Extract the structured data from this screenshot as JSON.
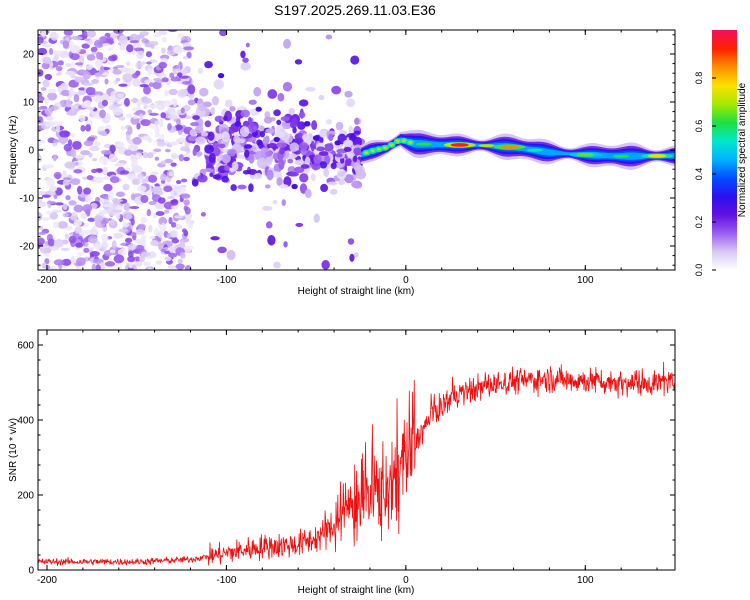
{
  "title": "S197.2025.269.11.03.E36",
  "chart_data": [
    {
      "type": "heatmap",
      "id": "spectrum",
      "xlabel": "Height of straight line (km)",
      "ylabel": "Frequency (Hz)",
      "xlim": [
        -205,
        150
      ],
      "ylim": [
        -25,
        25
      ],
      "xticks": [
        -200,
        -100,
        0,
        100
      ],
      "yticks": [
        -20,
        -10,
        0,
        10,
        20
      ],
      "colorbar": {
        "label": "Normalized spectral amplitude",
        "range": [
          0,
          1
        ],
        "ticks": [
          0.0,
          0.2,
          0.4,
          0.6,
          0.8
        ],
        "colors": [
          "#ffffff",
          "#d8c8f4",
          "#9a5cf0",
          "#6010e0",
          "#2a10f0",
          "#0050ff",
          "#00b4ff",
          "#00e8c8",
          "#20e040",
          "#a8e800",
          "#ffe000",
          "#ff8c00",
          "#ff2000",
          "#f01060"
        ]
      },
      "features": [
        {
          "name": "noise",
          "x_range": [
            -205,
            -120
          ],
          "f_range": [
            -25,
            25
          ],
          "amplitude": 0.08
        },
        {
          "name": "scatter",
          "x_range": [
            -120,
            -25
          ],
          "f_range": [
            -25,
            25
          ],
          "amplitude": 0.1
        },
        {
          "name": "carrier",
          "x_range": [
            -25,
            150
          ],
          "frequency_hz": 0,
          "peak_amplitude": 0.98
        }
      ],
      "carrier_track": [
        {
          "x": -25,
          "f": -1.0
        },
        {
          "x": -20,
          "f": -0.3
        },
        {
          "x": -10,
          "f": 0.6
        },
        {
          "x": -3,
          "f": 2.2
        },
        {
          "x": 0,
          "f": 1.8
        },
        {
          "x": 5,
          "f": 1.3
        },
        {
          "x": 20,
          "f": 1.1
        },
        {
          "x": 40,
          "f": 1.0
        },
        {
          "x": 60,
          "f": 0.6
        },
        {
          "x": 80,
          "f": -0.5
        },
        {
          "x": 100,
          "f": -1.0
        },
        {
          "x": 120,
          "f": -1.3
        },
        {
          "x": 150,
          "f": -1.2
        }
      ],
      "carrier_hotspots": [
        {
          "x": 30,
          "f": 1.0,
          "amplitude": 0.95
        },
        {
          "x": 58,
          "f": 0.3,
          "amplitude": 0.85
        },
        {
          "x": 100,
          "f": -1.8,
          "amplitude": 0.65
        },
        {
          "x": 140,
          "f": -1.3,
          "amplitude": 0.75
        }
      ]
    },
    {
      "type": "line",
      "id": "snr",
      "xlabel": "Height of straight line (km)",
      "ylabel": "SNR (10 * v/v)",
      "xlim": [
        -205,
        150
      ],
      "ylim": [
        0,
        640
      ],
      "xticks": [
        -200,
        -100,
        0,
        100
      ],
      "yticks": [
        0,
        200,
        400,
        600
      ],
      "color": "#ee1010",
      "series": [
        {
          "name": "SNR",
          "x": [
            -205,
            -150,
            -120,
            -100,
            -80,
            -60,
            -45,
            -35,
            -25,
            -15,
            -5,
            5,
            15,
            25,
            40,
            60,
            80,
            100,
            120,
            150
          ],
          "values": [
            22,
            22,
            28,
            45,
            62,
            68,
            95,
            150,
            195,
            210,
            250,
            340,
            415,
            460,
            485,
            505,
            510,
            505,
            500,
            500
          ]
        }
      ]
    }
  ]
}
